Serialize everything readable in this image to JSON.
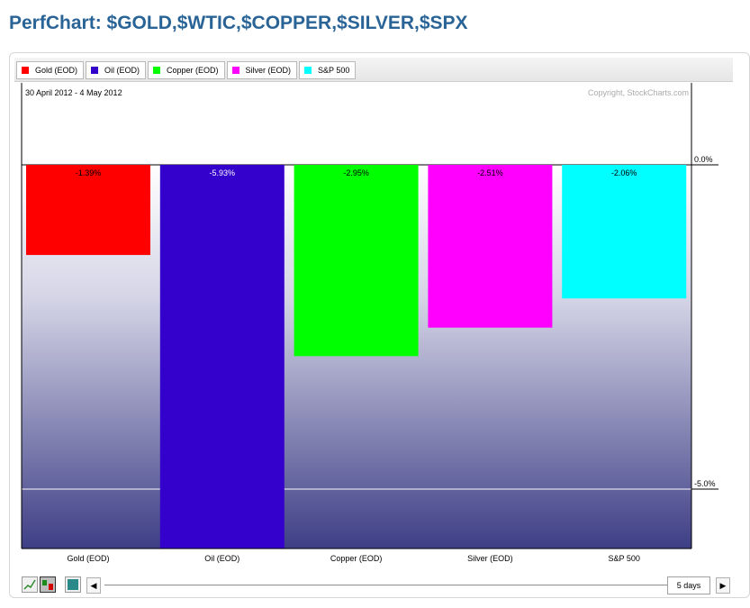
{
  "page": {
    "title": "PerfChart: $GOLD,$WTIC,$COPPER,$SILVER,$SPX"
  },
  "legend": [
    {
      "label": "Gold (EOD)",
      "color": "#ff0000"
    },
    {
      "label": "Oil (EOD)",
      "color": "#3300cc"
    },
    {
      "label": "Copper (EOD)",
      "color": "#00ff00"
    },
    {
      "label": "Silver (EOD)",
      "color": "#ff00ff"
    },
    {
      "label": "S&P 500",
      "color": "#00ffff"
    }
  ],
  "chart_data": {
    "type": "bar",
    "title": "PerfChart: $GOLD,$WTIC,$COPPER,$SILVER,$SPX",
    "date_range": "30 April 2012 - 4 May 2012",
    "copyright": "Copyright, StockCharts.com",
    "categories": [
      "Gold (EOD)",
      "Oil (EOD)",
      "Copper (EOD)",
      "Silver (EOD)",
      "S&P 500"
    ],
    "values": [
      -1.39,
      -5.93,
      -2.95,
      -2.51,
      -2.06
    ],
    "value_labels": [
      "-1.39%",
      "-5.93%",
      "-2.95%",
      "-2.51%",
      "-2.06%"
    ],
    "colors": [
      "#ff0000",
      "#3300cc",
      "#00ff00",
      "#ff00ff",
      "#00ffff"
    ],
    "ylim": [
      -5.93,
      1.0
    ],
    "yticks": [
      0.0,
      -5.0
    ],
    "ytick_labels": [
      "0.0%",
      "-5.0%"
    ],
    "xlabel": "",
    "ylabel": "",
    "legend_position": "top"
  },
  "controls": {
    "period": "5 days",
    "left_arrow": "◀",
    "right_arrow": "▶"
  }
}
